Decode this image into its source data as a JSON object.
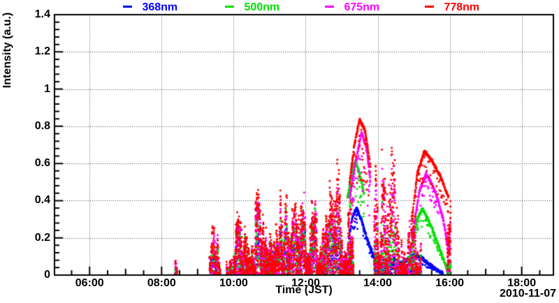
{
  "chart_data": {
    "type": "scatter",
    "title": "",
    "xlabel": "Time (JST)",
    "ylabel": "Intensity (a.u.)",
    "date_label": "2010-11-07",
    "xlim_hours": [
      5.025,
      18.88
    ],
    "ylim": [
      0,
      1.4
    ],
    "grid": true,
    "grid_style": "dotted",
    "legend_position": "top",
    "marker": "dot",
    "marker_px": 3,
    "x_ticks": [
      {
        "t": 6,
        "label": "06:00"
      },
      {
        "t": 8,
        "label": "08:00"
      },
      {
        "t": 10,
        "label": "10:00"
      },
      {
        "t": 12,
        "label": "12:00"
      },
      {
        "t": 14,
        "label": "14:00"
      },
      {
        "t": 16,
        "label": "16:00"
      },
      {
        "t": 18,
        "label": "18:00"
      }
    ],
    "y_ticks": [
      {
        "v": 0,
        "label": "0"
      },
      {
        "v": 0.2,
        "label": "0.2"
      },
      {
        "v": 0.4,
        "label": "0.4"
      },
      {
        "v": 0.6,
        "label": "0.6"
      },
      {
        "v": 0.8,
        "label": "0.8"
      },
      {
        "v": 1,
        "label": "1"
      },
      {
        "v": 1.2,
        "label": "1.2"
      },
      {
        "v": 1.4,
        "label": "1.4"
      }
    ],
    "series": [
      {
        "key": "b",
        "name": "368nm",
        "color": "#0000ff"
      },
      {
        "key": "g",
        "name": "500nm",
        "color": "#00e000"
      },
      {
        "key": "m",
        "name": "675nm",
        "color": "#ff00ff"
      },
      {
        "key": "r",
        "name": "778nm",
        "color": "#ff0000"
      }
    ],
    "scatter_bursts": [
      {
        "t0": 8.37,
        "t1": 8.43,
        "density": 1.6,
        "tops": {
          "r": 0.13,
          "m": 0.12,
          "g": 0.04,
          "b": 0.05
        }
      },
      {
        "t0": 9.33,
        "t1": 9.62,
        "density": 3.0,
        "tops": {
          "r": 0.3,
          "m": 0.28,
          "g": 0.22,
          "b": 0.12
        }
      },
      {
        "t0": 9.8,
        "t1": 9.95,
        "density": 2.0,
        "tops": {
          "r": 0.12,
          "m": 0.1,
          "g": 0.07,
          "b": 0.05
        }
      },
      {
        "t0": 10.0,
        "t1": 10.6,
        "density": 5.0,
        "tops": {
          "r": 0.36,
          "m": 0.32,
          "g": 0.3,
          "b": 0.22
        }
      },
      {
        "t0": 10.6,
        "t1": 11.1,
        "density": 5.0,
        "tops": {
          "r": 0.46,
          "m": 0.42,
          "g": 0.36,
          "b": 0.26
        }
      },
      {
        "t0": 11.1,
        "t1": 11.75,
        "density": 5.0,
        "tops": {
          "r": 0.45,
          "m": 0.4,
          "g": 0.36,
          "b": 0.3
        }
      },
      {
        "t0": 11.75,
        "t1": 12.3,
        "density": 5.0,
        "tops": {
          "r": 0.43,
          "m": 0.38,
          "g": 0.33,
          "b": 0.28
        }
      },
      {
        "t0": 12.3,
        "t1": 12.8,
        "density": 5.0,
        "tops": {
          "r": 0.46,
          "m": 0.4,
          "g": 0.34,
          "b": 0.24
        }
      },
      {
        "t0": 12.8,
        "t1": 13.32,
        "density": 5.0,
        "tops": {
          "r": 0.55,
          "m": 0.48,
          "g": 0.36,
          "b": 0.26
        }
      },
      {
        "t0": 13.9,
        "t1": 14.25,
        "density": 5.0,
        "tops": {
          "r": 0.8,
          "m": 0.7,
          "g": 0.42,
          "b": 0.14
        }
      },
      {
        "t0": 14.25,
        "t1": 14.48,
        "density": 4.0,
        "tops": {
          "r": 0.66,
          "m": 0.55,
          "g": 0.3,
          "b": 0.1
        }
      },
      {
        "t0": 14.48,
        "t1": 14.72,
        "density": 3.0,
        "tops": {
          "r": 0.45,
          "m": 0.38,
          "g": 0.22,
          "b": 0.08
        }
      },
      {
        "t0": 14.72,
        "t1": 15.2,
        "density": 3.0,
        "tops": {
          "r": 0.38,
          "m": 0.33,
          "g": 0.2,
          "b": 0.06
        }
      },
      {
        "t0": 15.93,
        "t1": 16.03,
        "density": 7.0,
        "hf_min": 0.55,
        "tops": {
          "r": 0.45,
          "m": 0.36,
          "g": 0.08,
          "b": 0.02
        }
      }
    ],
    "smooth_arcs": [
      {
        "series": "r",
        "spread": 0.4,
        "dots_per_hour": 160,
        "pts": [
          [
            13.22,
            0.5
          ],
          [
            13.35,
            0.7
          ],
          [
            13.5,
            0.84
          ],
          [
            13.65,
            0.78
          ],
          [
            13.8,
            0.58
          ]
        ]
      },
      {
        "series": "m",
        "spread": 0.45,
        "dots_per_hour": 160,
        "pts": [
          [
            13.22,
            0.42
          ],
          [
            13.38,
            0.6
          ],
          [
            13.55,
            0.77
          ],
          [
            13.7,
            0.68
          ],
          [
            13.8,
            0.5
          ]
        ]
      },
      {
        "series": "g",
        "spread": 0.32,
        "dots_per_hour": 160,
        "pts": [
          [
            13.16,
            0.42
          ],
          [
            13.28,
            0.55
          ],
          [
            13.38,
            0.62
          ],
          [
            13.5,
            0.55
          ],
          [
            13.62,
            0.44
          ]
        ]
      },
      {
        "series": "b",
        "spread": 0.3,
        "dots_per_hour": 140,
        "pts": [
          [
            13.2,
            0.2
          ],
          [
            13.3,
            0.32
          ],
          [
            13.42,
            0.36
          ],
          [
            13.55,
            0.3
          ],
          [
            13.7,
            0.2
          ],
          [
            13.88,
            0.11
          ],
          [
            14.05,
            0.06
          ]
        ]
      },
      {
        "series": "r",
        "spread": 0.22,
        "dots_per_hour": 130,
        "pts": [
          [
            14.95,
            0.3
          ],
          [
            15.1,
            0.55
          ],
          [
            15.3,
            0.67
          ],
          [
            15.5,
            0.62
          ],
          [
            15.75,
            0.53
          ],
          [
            15.97,
            0.42
          ]
        ]
      },
      {
        "series": "m",
        "spread": 0.22,
        "dots_per_hour": 130,
        "pts": [
          [
            14.95,
            0.2
          ],
          [
            15.15,
            0.45
          ],
          [
            15.35,
            0.55
          ],
          [
            15.6,
            0.45
          ],
          [
            15.8,
            0.32
          ],
          [
            15.99,
            0.13
          ]
        ]
      },
      {
        "series": "g",
        "spread": 0.28,
        "dots_per_hour": 130,
        "pts": [
          [
            14.9,
            0.1
          ],
          [
            15.08,
            0.3
          ],
          [
            15.25,
            0.36
          ],
          [
            15.5,
            0.26
          ],
          [
            15.75,
            0.13
          ],
          [
            15.95,
            0.02
          ]
        ]
      },
      {
        "series": "b",
        "spread": 0.45,
        "dots_per_hour": 110,
        "pts": [
          [
            14.35,
            0.05
          ],
          [
            14.7,
            0.07
          ],
          [
            15.0,
            0.11
          ],
          [
            15.2,
            0.1
          ],
          [
            15.5,
            0.05
          ],
          [
            15.82,
            0.01
          ]
        ]
      }
    ]
  }
}
